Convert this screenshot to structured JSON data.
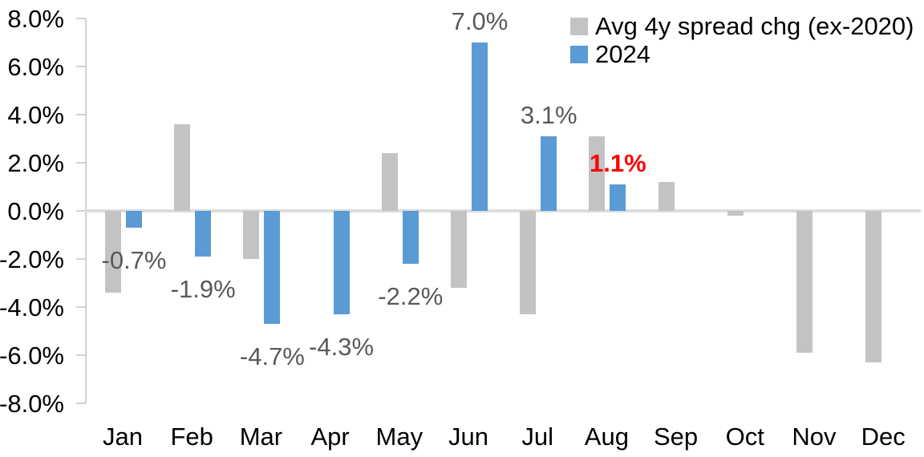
{
  "chart_data": {
    "type": "bar",
    "title": "",
    "xlabel": "",
    "ylabel": "",
    "categories": [
      "Jan",
      "Feb",
      "Mar",
      "Apr",
      "May",
      "Jun",
      "Jul",
      "Aug",
      "Sep",
      "Oct",
      "Nov",
      "Dec"
    ],
    "series": [
      {
        "name": "Avg 4y spread chg (ex-2020)",
        "key": "avg",
        "color": "#c3c3c3",
        "values": [
          -3.4,
          3.6,
          -2.0,
          0.0,
          2.4,
          -3.2,
          -4.3,
          3.1,
          1.2,
          -0.2,
          -5.9,
          -6.3
        ]
      },
      {
        "name": "2024",
        "key": "2024",
        "color": "#5b9bd5",
        "values": [
          -0.7,
          -1.9,
          -4.7,
          -4.3,
          -2.2,
          7.0,
          3.1,
          1.1,
          null,
          null,
          null,
          null
        ],
        "data_labels": [
          "-0.7%",
          "-1.9%",
          "-4.7%",
          "-4.3%",
          "-2.2%",
          "7.0%",
          "3.1%",
          "1.1%",
          null,
          null,
          null,
          null
        ],
        "label_colors": [
          "#595959",
          "#595959",
          "#595959",
          "#595959",
          "#595959",
          "#595959",
          "#595959",
          "#ff0000",
          null,
          null,
          null,
          null
        ],
        "label_bold": [
          false,
          false,
          false,
          false,
          false,
          false,
          false,
          true,
          null,
          null,
          null,
          null
        ]
      }
    ],
    "y_axis": {
      "min": -8,
      "max": 8,
      "step": 2,
      "tick_labels": [
        "8.0%",
        "6.0%",
        "4.0%",
        "2.0%",
        "0.0%",
        "-2.0%",
        "-4.0%",
        "-6.0%",
        "-8.0%"
      ]
    },
    "legend_position": "top-right",
    "grid": false,
    "colors": {
      "axis_line": "#d2d2d2",
      "zero_line": "#dddddd",
      "data_label_default": "#595959",
      "data_label_highlight": "#ff0000",
      "axis_text": "#000000"
    }
  }
}
